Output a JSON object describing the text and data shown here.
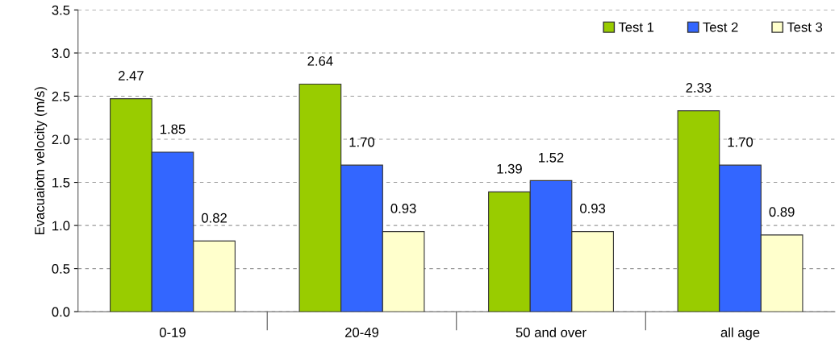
{
  "chart_data": {
    "type": "bar",
    "ylabel": "Evacuaiotn velocity (m/s)",
    "categories": [
      "0-19",
      "20-49",
      "50 and over",
      "all age"
    ],
    "series": [
      {
        "name": "Test 1",
        "color": "#99cc00",
        "values": [
          2.47,
          2.64,
          1.39,
          2.33
        ],
        "value_labels": [
          "2.47",
          "2.64",
          "1.39",
          "2.33"
        ]
      },
      {
        "name": "Test 2",
        "color": "#3366ff",
        "values": [
          1.85,
          1.7,
          1.52,
          1.7
        ],
        "value_labels": [
          "1.85",
          "1.70",
          "1.52",
          "1.70"
        ]
      },
      {
        "name": "Test 3",
        "color": "#ffffcc",
        "values": [
          0.82,
          0.93,
          0.93,
          0.89
        ],
        "value_labels": [
          "0.82",
          "0.93",
          "0.93",
          "0.89"
        ]
      }
    ],
    "ylim": [
      0,
      3.5
    ],
    "yticks": [
      {
        "value": 0,
        "label": "0.0"
      },
      {
        "value": 0.5,
        "label": "0.5"
      },
      {
        "value": 1,
        "label": "1.0"
      },
      {
        "value": 1.5,
        "label": "1.5"
      },
      {
        "value": 2,
        "label": "2.0"
      },
      {
        "value": 2.5,
        "label": "2.5"
      },
      {
        "value": 3,
        "label": "3.0"
      },
      {
        "value": 3.5,
        "label": "3.5"
      }
    ],
    "grid": "y",
    "legend": "top right"
  }
}
